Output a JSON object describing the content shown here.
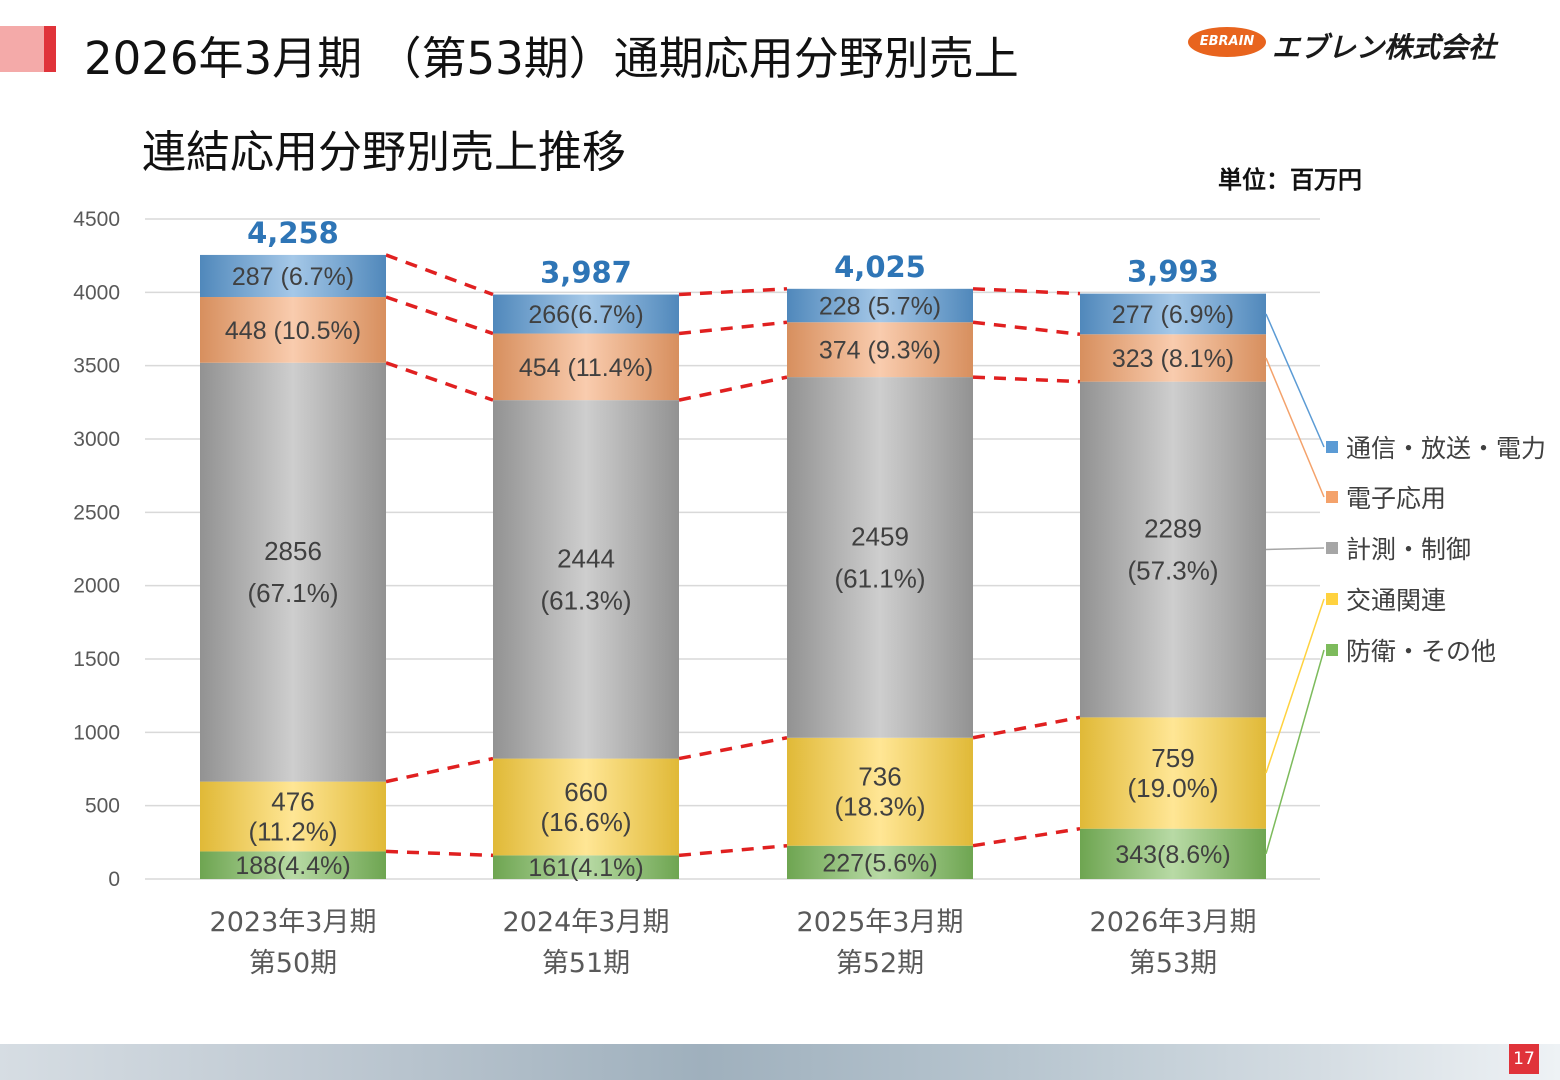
{
  "page_title": "2026年3月期 （第53期）通期応用分野別売上",
  "logo": {
    "mark": "EBRAIN",
    "name": "エブレン株式会社"
  },
  "subtitle": "連結応用分野別売上推移",
  "unit": "単位：百万円",
  "page_number": "17",
  "colors": {
    "通信・放送・電力": "#5b9bd5",
    "電子応用": "#f4a26b",
    "計測・制御": "#a6a6a6",
    "交通関連": "#ffd23f",
    "防衛・その他": "#7dbb5c",
    "total": "#2e75b6",
    "connector": "#e02020"
  },
  "chart_data": {
    "type": "bar",
    "stacked": true,
    "categories": [
      [
        "2023年3月期",
        "第50期"
      ],
      [
        "2024年3月期",
        "第51期"
      ],
      [
        "2025年3月期",
        "第52期"
      ],
      [
        "2026年3月期",
        "第53期"
      ]
    ],
    "ylim": [
      0,
      4500
    ],
    "yticks": [
      0,
      500,
      1000,
      1500,
      2000,
      2500,
      3000,
      3500,
      4000,
      4500
    ],
    "grid": true,
    "legend_position": "right",
    "totals": [
      "4,258",
      "3,987",
      "4,025",
      "3,993"
    ],
    "series": [
      {
        "name": "防衛・その他",
        "values": [
          188,
          161,
          227,
          343
        ],
        "labels": [
          "188(4.4%)",
          "161(4.1%)",
          "227(5.6%)",
          "343(8.6%)"
        ]
      },
      {
        "name": "交通関連",
        "values": [
          476,
          660,
          736,
          759
        ],
        "labels": [
          [
            "476",
            "(11.2%)"
          ],
          [
            "660",
            "(16.6%)"
          ],
          [
            "736",
            "(18.3%)"
          ],
          [
            "759",
            "(19.0%)"
          ]
        ]
      },
      {
        "name": "計測・制御",
        "values": [
          2856,
          2444,
          2459,
          2289
        ],
        "labels": [
          [
            "2856",
            "(67.1%)"
          ],
          [
            "2444",
            "(61.3%)"
          ],
          [
            "2459",
            "(61.1%)"
          ],
          [
            "2289",
            "(57.3%)"
          ]
        ]
      },
      {
        "name": "電子応用",
        "values": [
          448,
          454,
          374,
          323
        ],
        "labels": [
          "448 (10.5%)",
          "454 (11.4%)",
          "374 (9.3%)",
          "323 (8.1%)"
        ]
      },
      {
        "name": "通信・放送・電力",
        "values": [
          287,
          266,
          228,
          277
        ],
        "labels": [
          "287 (6.7%)",
          "266(6.7%)",
          "228 (5.7%)",
          "277 (6.9%)"
        ]
      }
    ],
    "legend_order": [
      "通信・放送・電力",
      "電子応用",
      "計測・制御",
      "交通関連",
      "防衛・その他"
    ]
  }
}
